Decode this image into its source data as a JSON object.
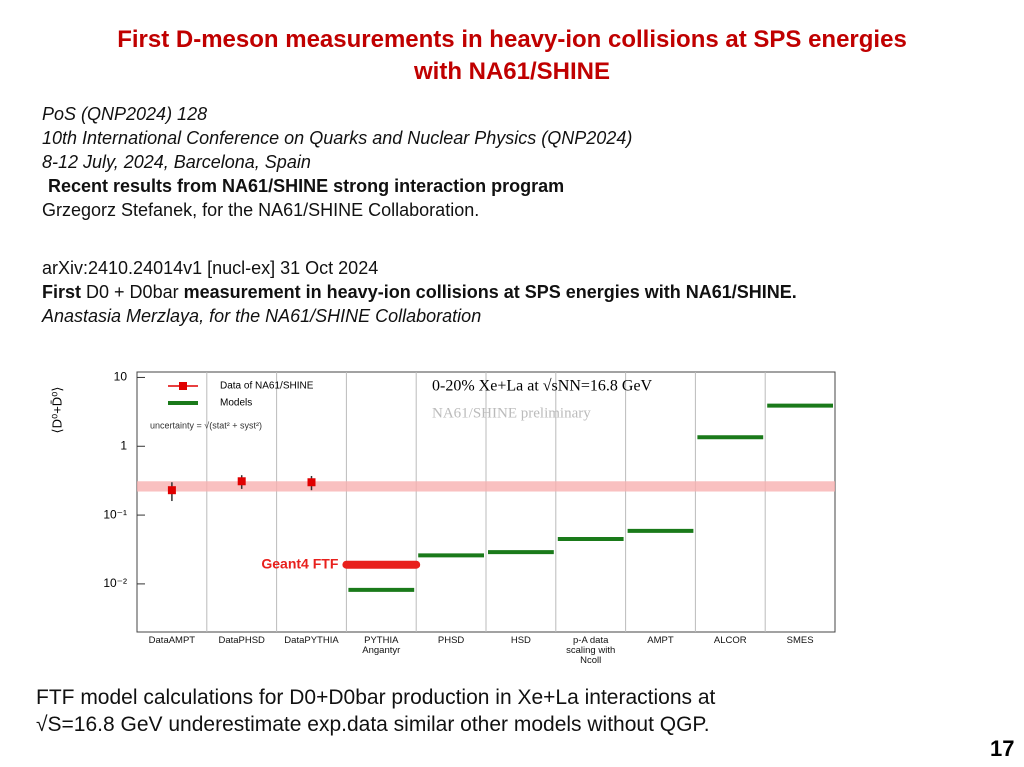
{
  "title": [
    "First D-meson measurements  in heavy-ion collisions at SPS energies",
    "with NA61/SHINE"
  ],
  "reference_1": {
    "lines": [
      "PoS (QNP2024) 128",
      "10th International Conference on Quarks and Nuclear Physics (QNP2024)",
      "8-12 July, 2024, Barcelona, Spain"
    ],
    "talk_title": "Recent results from NA61/SHINE strong interaction program",
    "author": "Grzegorz Stefanek, for the NA61/SHINE Collaboration."
  },
  "reference_2": {
    "id": "arXiv:2410.24014v1 [nucl-ex] 31 Oct 2024",
    "title_parts": [
      "First",
      "D0 + D0bar",
      "measurement in heavy-ion collisions at SPS energies with NA61/SHINE."
    ],
    "author": "Anastasia Merzlaya, for the NA61/SHINE Collaboration"
  },
  "chart_data": {
    "type": "step-comparison",
    "title": "0-20% Xe+La at √sNN=16.8 GeV",
    "subtitle": "NA61/SHINE preliminary",
    "ylabel": "⟨D⁰+D̄⁰⟩",
    "log_y": true,
    "ylim": [
      0.002,
      12
    ],
    "yticks": [
      {
        "value": 0.01,
        "label": "10⁻²"
      },
      {
        "value": 0.1,
        "label": "10⁻¹"
      },
      1,
      10
    ],
    "categories": [
      "DataAMPT",
      "DataPHSD",
      "DataPYTHIA",
      "PYTHIA\nAngantyr",
      "PHSD",
      "HSD",
      "p-A data\nscaling with Ncoll",
      "AMPT",
      "ALCOR",
      "SMES"
    ],
    "series": [
      {
        "name": "Data of NA61/SHINE",
        "color": "#e00000",
        "style": "points",
        "values": [
          0.23,
          0.31,
          0.3,
          null,
          null,
          null,
          null,
          null,
          null,
          null
        ],
        "errors": [
          0.07,
          0.07,
          0.07,
          null,
          null,
          null,
          null,
          null,
          null,
          null
        ]
      },
      {
        "name": "Models",
        "color": "#1a7a1a",
        "style": "steps",
        "values": [
          null,
          null,
          null,
          0.0082,
          0.026,
          0.029,
          0.045,
          0.059,
          1.35,
          3.9
        ]
      },
      {
        "name": "Geant4 FTF",
        "color": "#e8201c",
        "style": "thick-step",
        "values": [
          null,
          null,
          null,
          0.019,
          null,
          null,
          null,
          null,
          null,
          null
        ]
      }
    ],
    "legend_note": "uncertainty = √(stat² + syst²)",
    "band": {
      "values": [
        0.22,
        0.31
      ],
      "color": "#f7b0b0"
    }
  },
  "caption": [
    "FTF model calculations for D0+D0bar production in Xe+La interactions at",
    "√S=16.8 GeV underestimate exp.data similar other models without QGP."
  ],
  "page_number": "17"
}
